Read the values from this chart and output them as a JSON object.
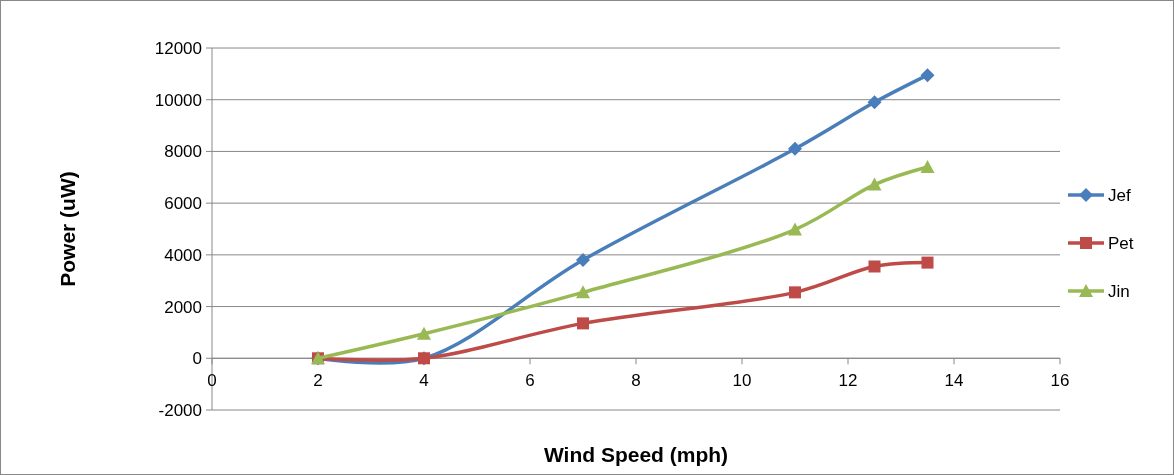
{
  "chart_data": {
    "type": "line",
    "xlabel": "Wind Speed (mph)",
    "ylabel": "Power (uW)",
    "xlim": [
      0,
      16
    ],
    "xticks": [
      0,
      2,
      4,
      6,
      8,
      10,
      12,
      14,
      16
    ],
    "ylim": [
      -2000,
      12000
    ],
    "yticks": [
      -2000,
      0,
      2000,
      4000,
      6000,
      8000,
      10000,
      12000
    ],
    "grid": "y",
    "legend": "right",
    "series": [
      {
        "name": "Jef",
        "color": "#4a7ebb",
        "marker": "diamond",
        "x": [
          2,
          4,
          7,
          11,
          12.5,
          13.5
        ],
        "values": [
          0,
          0,
          3800,
          8100,
          9900,
          10950
        ]
      },
      {
        "name": "Pet",
        "color": "#be4b48",
        "marker": "square",
        "x": [
          2,
          4,
          7,
          11,
          12.5,
          13.5
        ],
        "values": [
          0,
          0,
          1350,
          2550,
          3550,
          3700
        ]
      },
      {
        "name": "Jin",
        "color": "#98b954",
        "marker": "triangle",
        "x": [
          2,
          4,
          7,
          11,
          12.5,
          13.5
        ],
        "values": [
          0,
          950,
          2550,
          4980,
          6720,
          7400
        ]
      }
    ]
  }
}
